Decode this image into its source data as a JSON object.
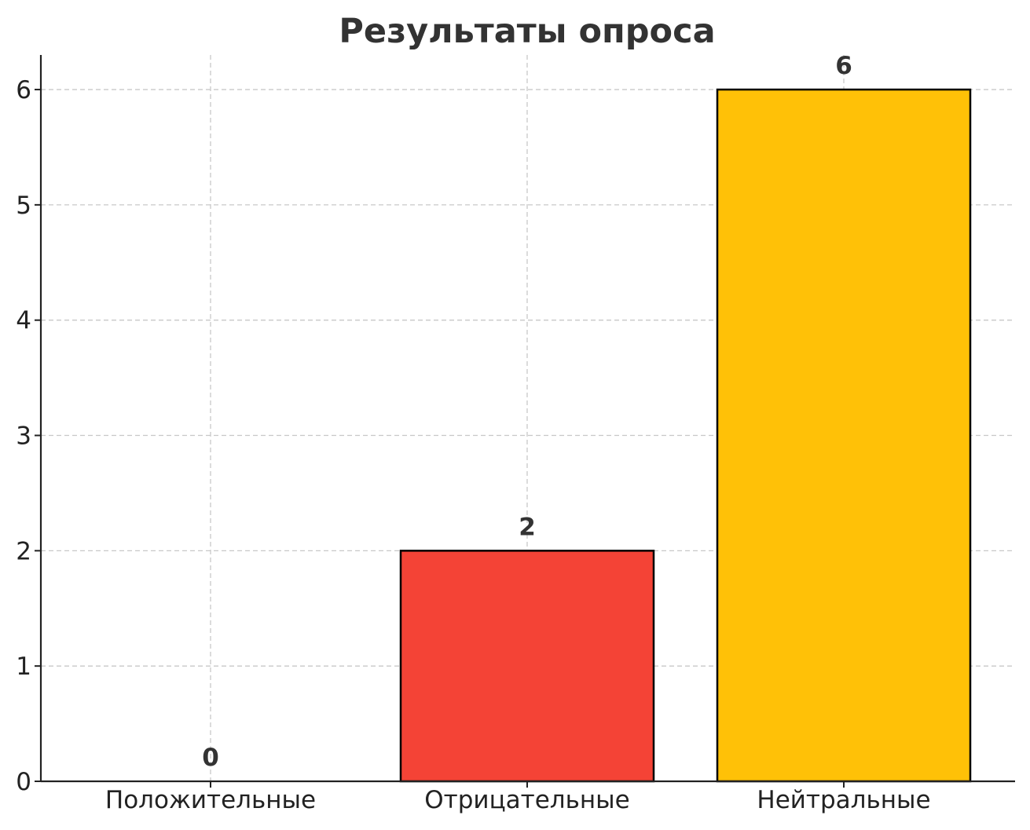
{
  "chart_data": {
    "type": "bar",
    "title": "Результаты опроса",
    "xlabel": "",
    "ylabel": "",
    "categories": [
      "Положительные",
      "Отрицательные",
      "Нейтральные"
    ],
    "values": [
      0,
      2,
      6
    ],
    "data_labels": [
      "0",
      "2",
      "6"
    ],
    "colors": [
      "#4caf50",
      "#f44336",
      "#ffc107"
    ],
    "edge_color": "#000000",
    "ylim": [
      0,
      6.3
    ],
    "yticks": [
      0,
      1,
      2,
      3,
      4,
      5,
      6
    ],
    "grid": true,
    "legend": "none"
  }
}
